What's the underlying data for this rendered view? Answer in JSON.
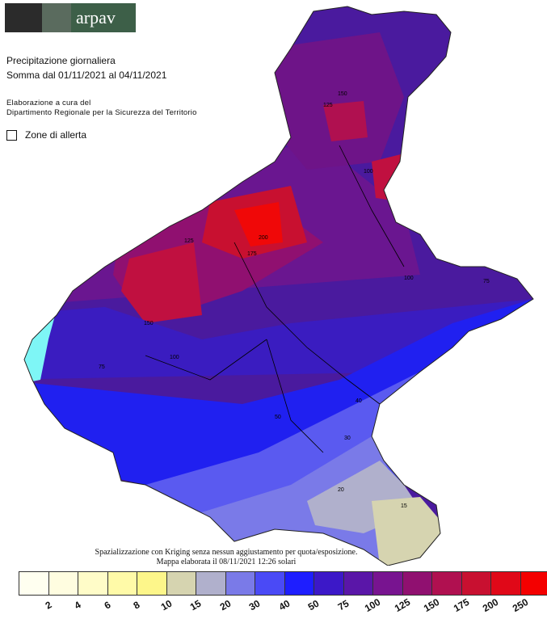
{
  "header": {
    "logo_text": "arpav",
    "title_line1": "Precipitazione giornaliera",
    "title_line2": "Somma dal 01/11/2021 al 04/11/2021",
    "credit_line1": "Elaborazione a cura del",
    "credit_line2": "Dipartimento Regionale per la Sicurezza del Territorio",
    "zone_label": "Zone di allerta"
  },
  "footer": {
    "note_line1": "Spazializzazione con Kriging senza nessun aggiustamento per quota/esposizione.",
    "note_line2": "Mappa elaborata il 08/11/2021 12:26 solari"
  },
  "legend": {
    "colors": [
      "#fffff0",
      "#fffde0",
      "#fffcc8",
      "#fffaa8",
      "#fdf68a",
      "#d6d4b0",
      "#b0b0cc",
      "#7a7ae8",
      "#4a4af6",
      "#1e1eff",
      "#3c18c8",
      "#5a16a8",
      "#781490",
      "#901070",
      "#b01050",
      "#c81030",
      "#e00818",
      "#f40000"
    ],
    "labels": [
      "2",
      "4",
      "6",
      "8",
      "10",
      "15",
      "20",
      "30",
      "40",
      "50",
      "75",
      "100",
      "125",
      "150",
      "175",
      "200",
      "250"
    ]
  },
  "map": {
    "contour_labels": [
      {
        "text": "125"
      },
      {
        "text": "150"
      },
      {
        "text": "100"
      },
      {
        "text": "125"
      },
      {
        "text": "100"
      },
      {
        "text": "75"
      },
      {
        "text": "50"
      },
      {
        "text": "40"
      },
      {
        "text": "30"
      },
      {
        "text": "20"
      },
      {
        "text": "15"
      },
      {
        "text": "150"
      },
      {
        "text": "175"
      },
      {
        "text": "200"
      },
      {
        "text": "100"
      },
      {
        "text": "75"
      }
    ]
  }
}
